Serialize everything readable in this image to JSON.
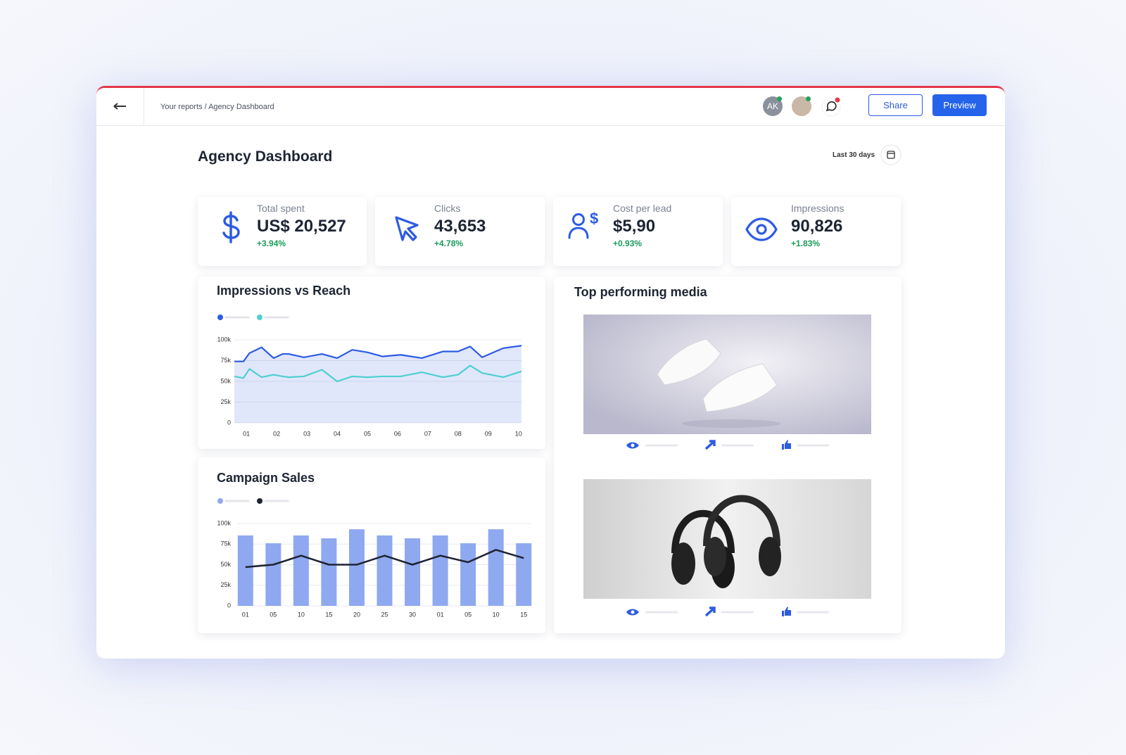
{
  "header": {
    "breadcrumb": "Your reports / Agency Dashboard",
    "avatar": "AK",
    "share": "Share",
    "preview": "Preview"
  },
  "title": "Agency Dashboard",
  "date_range": "Last 30 days",
  "kpis": [
    {
      "label": "Total spent",
      "value": "US$ 20,527",
      "change": "+3.94%"
    },
    {
      "label": "Clicks",
      "value": "43,653",
      "change": "+4.78%"
    },
    {
      "label": "Cost per lead",
      "value": "$5,90",
      "change": "+0.93%"
    },
    {
      "label": "Impressions",
      "value": "90,826",
      "change": "+1.83%"
    }
  ],
  "chart_data": [
    {
      "type": "line",
      "title": "Impressions vs Reach",
      "x": [
        0.6,
        0.9,
        1.1,
        1.5,
        1.9,
        2.2,
        2.4,
        2.9,
        3.5,
        4.0,
        4.5,
        5.0,
        5.5,
        6.1,
        6.8,
        7.5,
        8.0,
        8.4,
        8.8,
        9.5,
        10.1
      ],
      "xlim": [
        0.6,
        10.1
      ],
      "xticks": [
        {
          "value": 1,
          "label": "01"
        },
        {
          "value": 2,
          "label": "02"
        },
        {
          "value": 3,
          "label": "03"
        },
        {
          "value": 4,
          "label": "04"
        },
        {
          "value": 5,
          "label": "05"
        },
        {
          "value": 6,
          "label": "06"
        },
        {
          "value": 7,
          "label": "07"
        },
        {
          "value": 8,
          "label": "08"
        },
        {
          "value": 9,
          "label": "09"
        },
        {
          "value": 10,
          "label": "10"
        }
      ],
      "series": [
        {
          "color": "#2d5be3",
          "area": true,
          "values": [
            74000,
            74000,
            84000,
            91000,
            78000,
            83000,
            83000,
            79000,
            83000,
            78000,
            88000,
            85000,
            80000,
            82000,
            78000,
            86000,
            86000,
            92000,
            79000,
            90000,
            93000
          ]
        },
        {
          "color": "#4fcfcf",
          "values": [
            56000,
            54000,
            65000,
            55000,
            58000,
            56000,
            55000,
            56000,
            64000,
            50000,
            56000,
            55000,
            56000,
            56000,
            61000,
            55000,
            58000,
            69000,
            60000,
            55000,
            62000
          ]
        }
      ],
      "ylim": [
        0,
        100000
      ],
      "yticks": [
        0,
        {
          "value": 25000,
          "label": "25k"
        },
        {
          "value": 50000,
          "label": "50k"
        },
        {
          "value": 75000,
          "label": "75k"
        },
        {
          "value": 100000,
          "label": "100k"
        }
      ],
      "grid": true
    },
    {
      "type": "bar",
      "title": "Campaign Sales",
      "categories": [
        "01",
        "05",
        "10",
        "15",
        "20",
        "25",
        "30",
        "01",
        "05",
        "10",
        "15"
      ],
      "series": [
        {
          "color": "#8ea9f0",
          "values": [
            85500,
            76000,
            85500,
            82000,
            93000,
            85500,
            82000,
            85500,
            76000,
            93000,
            76000
          ]
        },
        {
          "color": "#1e2433",
          "type": "line",
          "values": [
            47000,
            50000,
            61000,
            50000,
            50000,
            61000,
            50000,
            61000,
            53000,
            68000,
            58000
          ]
        }
      ],
      "ylim": [
        0,
        100000
      ],
      "yticks": [
        0,
        {
          "value": 25000,
          "label": "25k"
        },
        {
          "value": 50000,
          "label": "50k"
        },
        {
          "value": 75000,
          "label": "75k"
        },
        {
          "value": 100000,
          "label": "100k"
        }
      ],
      "grid": true
    }
  ],
  "media": {
    "title": "Top performing media"
  }
}
